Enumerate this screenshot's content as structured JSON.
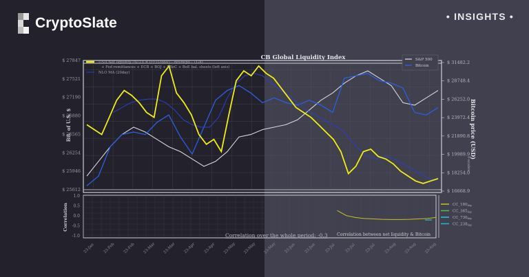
{
  "brand": {
    "name": "CryptoSlate",
    "badge": "• INSIGHTS •"
  },
  "colors": {
    "net_liquidity": "#f2ee12",
    "nlo_ma": "#2b3fc9",
    "sp500": "#d8d8dc",
    "bitcoin": "#2d5fe0",
    "cc_180": "#c9c320",
    "cc_365": "#4cc24c",
    "cc_730": "#26c9d6",
    "cc_238": "#26b7d6"
  },
  "chart_data": [
    {
      "type": "line",
      "title": "CB Global Liquidity Index",
      "title_visible_partial": "...CB Global Liquidity Index",
      "xlabel": "",
      "ylabel_left": "Bil. of U.S. $",
      "ylabel_right": "Bitcoin price (USD)",
      "ylabel_right_secondary": "Y-scales",
      "left_ticks": [
        "$ 25612",
        "$ 25946",
        "$ 26254",
        "$ 26565",
        "$ 26880",
        "$ 27190",
        "$ 27521",
        "$ 27847"
      ],
      "right_ticks": [
        "$ 16668.9",
        "$ 18254.0",
        "$ 19989.9",
        "$ 21890.8",
        "$ 23972.4",
        "$ 26252.0",
        "$ 28748.4",
        "$ 31482.2"
      ],
      "x_ticks": [
        "23-Jan",
        "23-Feb",
        "23-Feb",
        "23-Mar",
        "23-Mar",
        "23-Apr",
        "23-Apr",
        "23-May",
        "23-May",
        "23-May",
        "23-Jun",
        "23-Jun",
        "23-Jul",
        "23-Jul",
        "23-Jul",
        "23-Aug",
        "23-Aug",
        "23-Aug"
      ],
      "legend_left": [
        "USD Net liquidity (NLO) = (FED-total) - RevRepo - TGA) + Fed remittances + ECB + BOJ + PBoC + BoE bal. sheets (left axis)",
        "NLO MA (20day)"
      ],
      "legend_right": [
        "S&P 500",
        "Bitcoin"
      ],
      "grid": true,
      "series": [
        {
          "name": "USD Net liquidity (NLO)",
          "axis": "left",
          "values_normalized": [
            0.52,
            0.48,
            0.44,
            0.58,
            0.72,
            0.8,
            0.76,
            0.7,
            0.62,
            0.58,
            0.92,
            1.0,
            0.78,
            0.7,
            0.6,
            0.44,
            0.36,
            0.4,
            0.3,
            0.6,
            0.88,
            0.96,
            0.92,
            1.0,
            0.94,
            0.9,
            0.82,
            0.74,
            0.66,
            0.62,
            0.58,
            0.52,
            0.46,
            0.4,
            0.3,
            0.12,
            0.18,
            0.3,
            0.32,
            0.26,
            0.24,
            0.2,
            0.14,
            0.1,
            0.06,
            0.04,
            0.06,
            0.08
          ]
        },
        {
          "name": "NLO MA (20day)",
          "axis": "left",
          "values_normalized": [
            null,
            null,
            null,
            0.62,
            0.66,
            0.7,
            0.72,
            0.73,
            0.73,
            0.7,
            0.64,
            0.56,
            0.52,
            0.5,
            0.5,
            0.58,
            0.74,
            0.86,
            0.92,
            0.94,
            0.92,
            0.86,
            0.8,
            0.76,
            0.7,
            0.64,
            0.6,
            0.56,
            0.52,
            0.48,
            0.4,
            0.32,
            0.26,
            0.24,
            0.26,
            0.24,
            0.2,
            0.16,
            0.12,
            0.08,
            0.06
          ]
        },
        {
          "name": "S&P 500",
          "axis": "right",
          "values_normalized": [
            0.1,
            0.22,
            0.34,
            0.44,
            0.5,
            0.46,
            0.4,
            0.34,
            0.3,
            0.24,
            0.18,
            0.22,
            0.3,
            0.42,
            0.44,
            0.48,
            0.5,
            0.52,
            0.56,
            0.64,
            0.72,
            0.78,
            0.86,
            0.92,
            0.96,
            0.9,
            0.84,
            0.7,
            0.68,
            0.74,
            0.8
          ]
        },
        {
          "name": "Bitcoin",
          "axis": "right",
          "values_normalized": [
            0.02,
            0.1,
            0.34,
            0.44,
            0.46,
            0.44,
            0.54,
            0.6,
            0.42,
            0.28,
            0.5,
            0.72,
            0.8,
            0.84,
            0.78,
            0.7,
            0.74,
            0.7,
            0.68,
            0.72,
            0.68,
            0.62,
            0.9,
            0.92,
            0.94,
            0.88,
            0.86,
            0.82,
            0.62,
            0.6,
            0.66
          ]
        }
      ]
    },
    {
      "type": "line",
      "title": "Correlation between net liquidity & Bitcoin",
      "ylabel": "Correlation",
      "y_ticks": [
        "1.0",
        "0.5",
        "0.0",
        "-0.5",
        "-1.0"
      ],
      "ylim": [
        -1.0,
        1.0
      ],
      "annotation": "Correlation over the whole period: -0.3",
      "legend": [
        "CC_180day",
        "CC_365day",
        "CC_730day",
        "CC_238day"
      ],
      "series": [
        {
          "name": "CC_180day",
          "x_start_fraction": 0.72,
          "values": [
            0.3,
            0.05,
            -0.05,
            -0.1,
            -0.12,
            -0.14,
            -0.15,
            -0.15,
            -0.14,
            -0.12,
            -0.1,
            -0.05
          ]
        }
      ]
    }
  ]
}
